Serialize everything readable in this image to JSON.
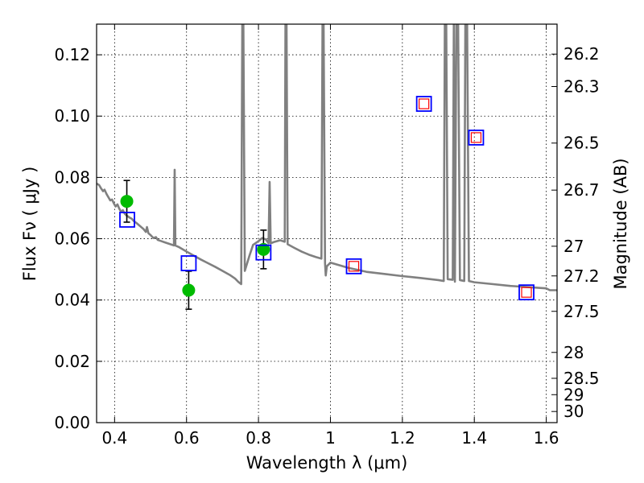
{
  "chart_data": {
    "type": "scatter",
    "title": "",
    "xlabel": "Wavelength  λ (μm)",
    "ylabel": "Flux  Fν  ( μJy )",
    "y2label": "Magnitude (AB)",
    "xlim": [
      0.35,
      1.63
    ],
    "ylim": [
      0.0,
      0.13
    ],
    "grid": true,
    "legend": "none",
    "x_ticks": [
      0.4,
      0.6,
      0.8,
      1.0,
      1.2,
      1.4,
      1.6
    ],
    "x_tick_labels": [
      "0.4",
      "0.6",
      "0.8",
      "1",
      "1.2",
      "1.4",
      "1.6"
    ],
    "y_ticks": [
      0.0,
      0.02,
      0.04,
      0.06,
      0.08,
      0.1,
      0.12
    ],
    "y_tick_labels": [
      "0.00",
      "0.02",
      "0.04",
      "0.06",
      "0.08",
      "0.10",
      "0.12"
    ],
    "y2_ticks": [
      26.2,
      26.3,
      26.5,
      26.7,
      27,
      27.2,
      27.5,
      28,
      28.5,
      29,
      30
    ],
    "y2_tick_labels": [
      "26.2",
      "26.3",
      "26.5",
      "26.7",
      "27",
      "27.2",
      "27.5",
      "28",
      "28.5",
      "29",
      "30"
    ],
    "series": [
      {
        "kind": "line",
        "color": "#808080",
        "points": [
          [
            0.35,
            0.078
          ],
          [
            0.357,
            0.0775
          ],
          [
            0.362,
            0.0765
          ],
          [
            0.368,
            0.0755
          ],
          [
            0.372,
            0.076
          ],
          [
            0.378,
            0.0745
          ],
          [
            0.383,
            0.0735
          ],
          [
            0.388,
            0.0725
          ],
          [
            0.393,
            0.0728
          ],
          [
            0.398,
            0.0715
          ],
          [
            0.403,
            0.0705
          ],
          [
            0.408,
            0.0712
          ],
          [
            0.413,
            0.0698
          ],
          [
            0.418,
            0.0688
          ],
          [
            0.423,
            0.0693
          ],
          [
            0.428,
            0.0682
          ],
          [
            0.433,
            0.0676
          ],
          [
            0.438,
            0.0672
          ],
          [
            0.443,
            0.0668
          ],
          [
            0.448,
            0.0665
          ],
          [
            0.453,
            0.0658
          ],
          [
            0.46,
            0.0652
          ],
          [
            0.467,
            0.0645
          ],
          [
            0.474,
            0.0638
          ],
          [
            0.48,
            0.0632
          ],
          [
            0.487,
            0.0622
          ],
          [
            0.49,
            0.0638
          ],
          [
            0.494,
            0.0618
          ],
          [
            0.5,
            0.0612
          ],
          [
            0.508,
            0.0602
          ],
          [
            0.515,
            0.0605
          ],
          [
            0.52,
            0.0596
          ],
          [
            0.53,
            0.0592
          ],
          [
            0.54,
            0.0588
          ],
          [
            0.55,
            0.0584
          ],
          [
            0.56,
            0.058
          ],
          [
            0.565,
            0.0578
          ],
          [
            0.567,
            0.0825
          ],
          [
            0.569,
            0.0578
          ],
          [
            0.58,
            0.0572
          ],
          [
            0.6,
            0.0558
          ],
          [
            0.62,
            0.0545
          ],
          [
            0.64,
            0.0532
          ],
          [
            0.66,
            0.052
          ],
          [
            0.68,
            0.0508
          ],
          [
            0.7,
            0.0495
          ],
          [
            0.72,
            0.0482
          ],
          [
            0.735,
            0.047
          ],
          [
            0.745,
            0.0458
          ],
          [
            0.752,
            0.0452
          ],
          [
            0.755,
            0.13
          ],
          [
            0.758,
            0.13
          ],
          [
            0.762,
            0.0495
          ],
          [
            0.775,
            0.0545
          ],
          [
            0.785,
            0.058
          ],
          [
            0.8,
            0.0592
          ],
          [
            0.81,
            0.0602
          ],
          [
            0.82,
            0.0598
          ],
          [
            0.828,
            0.0585
          ],
          [
            0.831,
            0.0785
          ],
          [
            0.834,
            0.0585
          ],
          [
            0.845,
            0.059
          ],
          [
            0.86,
            0.0595
          ],
          [
            0.873,
            0.059
          ],
          [
            0.875,
            0.13
          ],
          [
            0.878,
            0.13
          ],
          [
            0.881,
            0.0582
          ],
          [
            0.9,
            0.057
          ],
          [
            0.92,
            0.0558
          ],
          [
            0.94,
            0.0548
          ],
          [
            0.96,
            0.054
          ],
          [
            0.975,
            0.0535
          ],
          [
            0.978,
            0.13
          ],
          [
            0.981,
            0.13
          ],
          [
            0.985,
            0.052
          ],
          [
            0.987,
            0.048
          ],
          [
            0.99,
            0.051
          ],
          [
            1.0,
            0.0522
          ],
          [
            1.05,
            0.0505
          ],
          [
            1.1,
            0.0492
          ],
          [
            1.15,
            0.0485
          ],
          [
            1.2,
            0.0478
          ],
          [
            1.25,
            0.0472
          ],
          [
            1.3,
            0.0465
          ],
          [
            1.315,
            0.0462
          ],
          [
            1.318,
            0.13
          ],
          [
            1.322,
            0.13
          ],
          [
            1.326,
            0.0468
          ],
          [
            1.34,
            0.0466
          ],
          [
            1.343,
            0.13
          ],
          [
            1.346,
            0.046
          ],
          [
            1.35,
            0.13
          ],
          [
            1.355,
            0.13
          ],
          [
            1.36,
            0.0465
          ],
          [
            1.372,
            0.0462
          ],
          [
            1.375,
            0.13
          ],
          [
            1.38,
            0.13
          ],
          [
            1.385,
            0.0462
          ],
          [
            1.4,
            0.0458
          ],
          [
            1.45,
            0.0452
          ],
          [
            1.5,
            0.0446
          ],
          [
            1.55,
            0.0442
          ],
          [
            1.6,
            0.0438
          ],
          [
            1.61,
            0.0432
          ],
          [
            1.63,
            0.0432
          ]
        ]
      },
      {
        "kind": "points",
        "marker": "circle",
        "color": "#00bb00",
        "points": [
          {
            "x": 0.434,
            "y": 0.0722,
            "err": 0.0068
          },
          {
            "x": 0.606,
            "y": 0.0432,
            "err": 0.0062
          },
          {
            "x": 0.814,
            "y": 0.0565,
            "err": 0.0063
          }
        ]
      },
      {
        "kind": "points",
        "marker": "square-large",
        "color": "#0000ff",
        "points": [
          {
            "x": 0.435,
            "y": 0.0662
          },
          {
            "x": 0.606,
            "y": 0.052
          },
          {
            "x": 0.814,
            "y": 0.0555
          },
          {
            "x": 1.065,
            "y": 0.051
          },
          {
            "x": 1.26,
            "y": 0.104
          },
          {
            "x": 1.405,
            "y": 0.093
          },
          {
            "x": 1.545,
            "y": 0.0425
          }
        ]
      },
      {
        "kind": "points",
        "marker": "square-small",
        "color": "#ff0000",
        "points": [
          {
            "x": 1.065,
            "y": 0.051
          },
          {
            "x": 1.26,
            "y": 0.104
          },
          {
            "x": 1.405,
            "y": 0.093
          },
          {
            "x": 1.545,
            "y": 0.0425
          }
        ]
      }
    ]
  }
}
